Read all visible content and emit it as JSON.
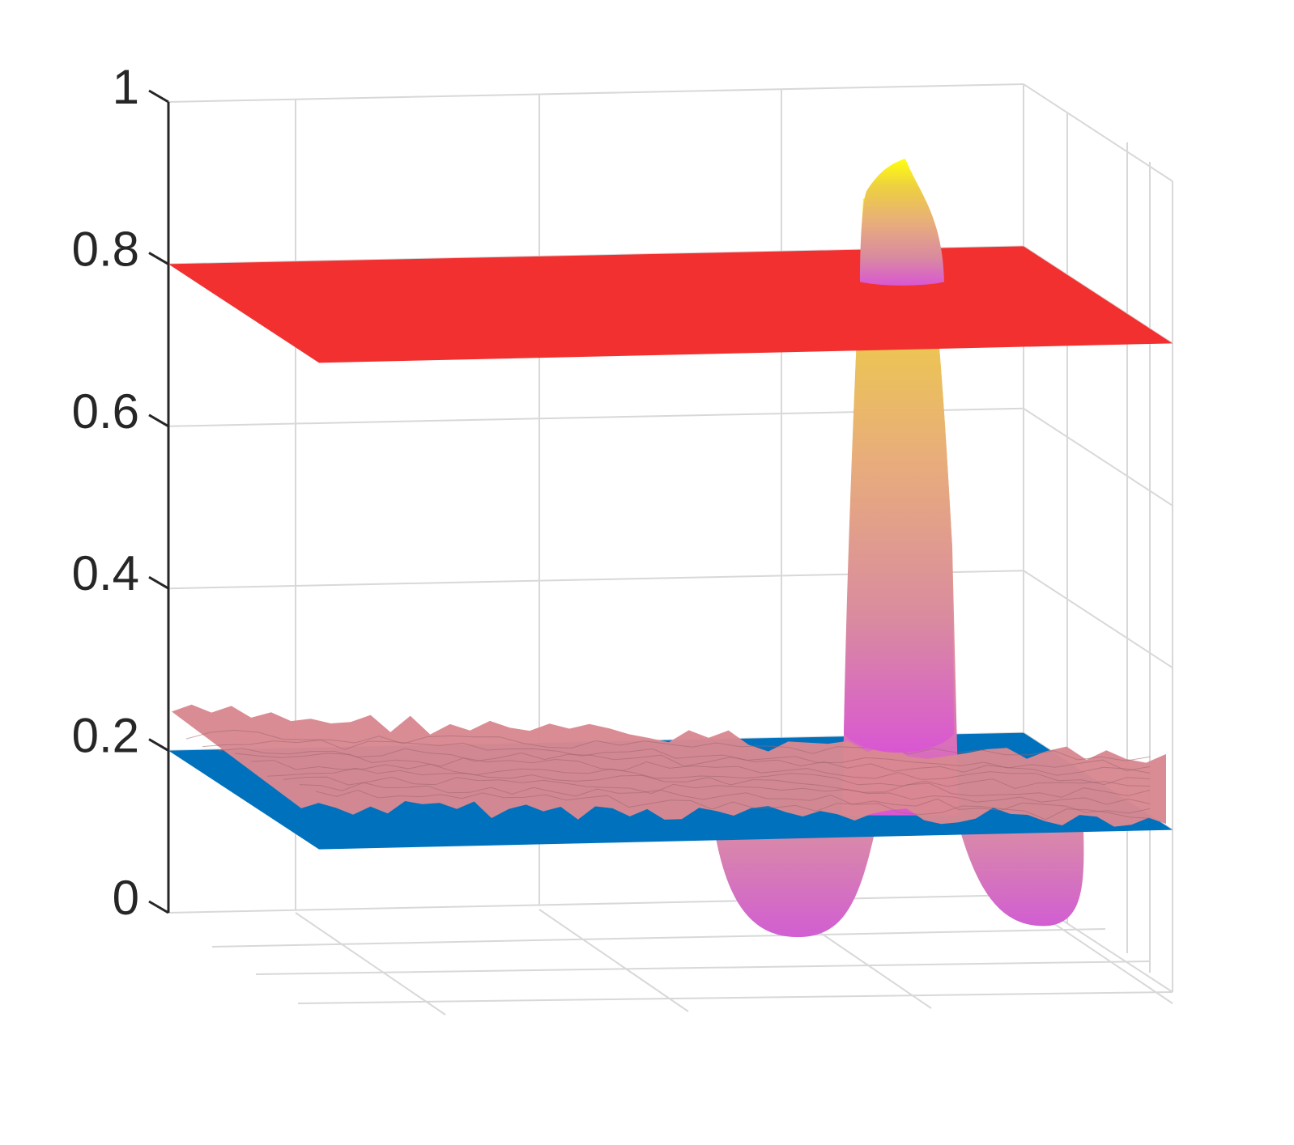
{
  "chart_data": {
    "type": "surface",
    "title": "",
    "xlabel": "",
    "ylabel": "",
    "zlabel": "",
    "zlim": [
      0,
      1
    ],
    "z_ticks": [
      "0",
      "0.2",
      "0.4",
      "0.6",
      "0.8",
      "1"
    ],
    "z_tick_values": [
      0,
      0.2,
      0.4,
      0.6,
      0.8,
      1
    ],
    "grid": true,
    "legend": "none",
    "view": "3d",
    "series": [
      {
        "kind": "plane",
        "z": 0.8,
        "color": "#f23030"
      },
      {
        "kind": "plane",
        "z": 0.2,
        "color": "#0072bd"
      },
      {
        "kind": "noisy-surface",
        "mean_z": 0.2,
        "color": "#d98891"
      },
      {
        "kind": "peak-surface",
        "peak_z": 0.93,
        "min_z": -0.03,
        "base_z": 0.2,
        "colors": [
          "#d957d3",
          "#e8a882",
          "#f0d040",
          "#ffff00"
        ]
      }
    ]
  }
}
